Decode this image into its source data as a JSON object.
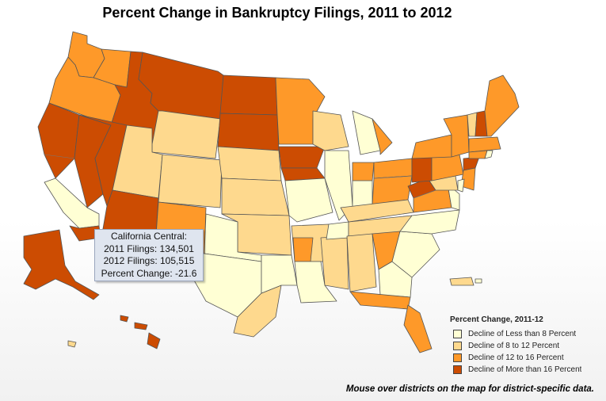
{
  "title": "Percent Change in Bankruptcy Filings, 2011 to 2012",
  "tooltip": {
    "district": "California Central:",
    "filings_2011": "2011 Filings: 134,501",
    "filings_2012": "2012 Filings: 105,515",
    "percent_change": "Percent Change: -21.6"
  },
  "legend": {
    "title": "Percent Change, 2011-12",
    "items": [
      {
        "label": "Decline of Less than 8 Percent",
        "color": "#ffffd4"
      },
      {
        "label": "Decline of 8 to 12 Percent",
        "color": "#fed98e"
      },
      {
        "label": "Decline of 12 to 16 Percent",
        "color": "#fe9929"
      },
      {
        "label": "Decline of More than 16 Percent",
        "color": "#cc4c02"
      }
    ]
  },
  "footnote": "Mouse over districts on the map for district-specific data.",
  "colors": {
    "class1": "#ffffd4",
    "class2": "#fed98e",
    "class3": "#fe9929",
    "class4": "#cc4c02",
    "border": "#555555"
  }
}
